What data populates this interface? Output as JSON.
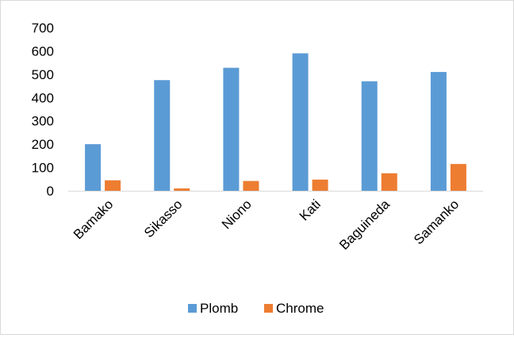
{
  "chart_data": {
    "type": "bar",
    "categories": [
      "Bamako",
      "Sikasso",
      "Niono",
      "Kati",
      "Baguineda",
      "Samanko"
    ],
    "series": [
      {
        "name": "Plomb",
        "color": "#5B9BD5",
        "values": [
          200,
          475,
          528,
          590,
          470,
          510
        ]
      },
      {
        "name": "Chrome",
        "color": "#ED7D31",
        "values": [
          45,
          10,
          42,
          48,
          75,
          115
        ]
      }
    ],
    "yticks": [
      0,
      100,
      200,
      300,
      400,
      500,
      600,
      700
    ],
    "ylim": [
      0,
      700
    ],
    "grid": false,
    "legend_position": "bottom"
  }
}
